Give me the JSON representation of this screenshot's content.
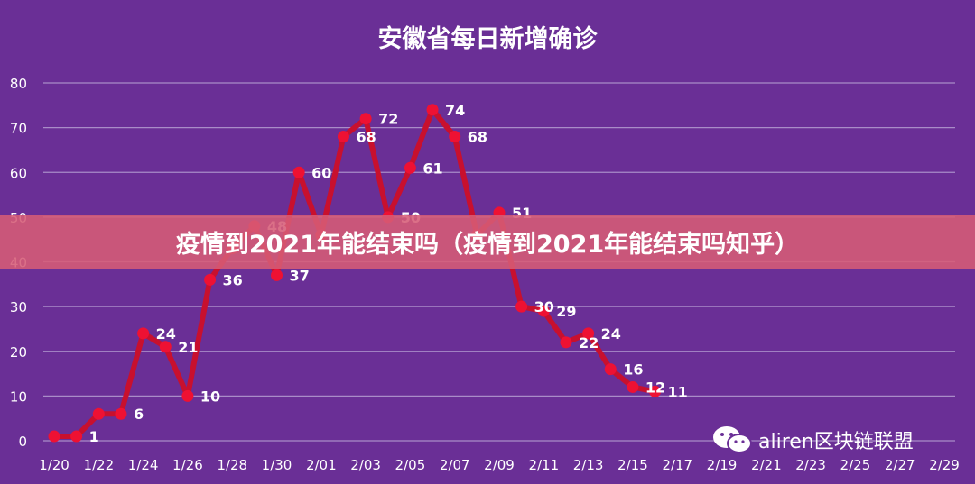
{
  "banner": {
    "title": "疫情到2021年能结束吗（疫情到2021年能结束吗知乎）"
  },
  "watermark": {
    "text": "aliren区块链联盟",
    "icon": "wechat-icon"
  },
  "colors": {
    "background": "#6a2f96",
    "line": "#c8102e",
    "marker": "#ee1133",
    "grid": "#a98cc8",
    "text": "#ffffff"
  },
  "chart_data": {
    "type": "line",
    "title": "安徽省每日新增确诊",
    "xlabel": "",
    "ylabel": "",
    "ylim": [
      0,
      80
    ],
    "yticks": [
      0,
      10,
      20,
      30,
      40,
      50,
      60,
      70,
      80
    ],
    "grid": true,
    "xtick_labels": [
      "1/20",
      "1/22",
      "1/24",
      "1/26",
      "1/28",
      "1/30",
      "2/01",
      "2/03",
      "2/05",
      "2/07",
      "2/09",
      "2/11",
      "2/13",
      "2/15",
      "2/17",
      "2/19",
      "2/21",
      "2/23",
      "2/25",
      "2/27",
      "2/29"
    ],
    "series": [
      {
        "values": [
          1,
          1,
          6,
          6,
          24,
          21,
          10,
          36,
          43,
          48,
          37,
          60,
          46,
          68,
          72,
          50,
          61,
          74,
          68,
          46,
          51,
          30,
          29,
          22,
          24,
          16,
          12,
          11
        ]
      }
    ],
    "data_labels": [
      {
        "index": 1,
        "text": "1"
      },
      {
        "index": 3,
        "text": "6"
      },
      {
        "index": 4,
        "text": "24"
      },
      {
        "index": 5,
        "text": "21"
      },
      {
        "index": 6,
        "text": "10"
      },
      {
        "index": 7,
        "text": "36"
      },
      {
        "index": 9,
        "text": "48"
      },
      {
        "index": 10,
        "text": "37"
      },
      {
        "index": 11,
        "text": "60"
      },
      {
        "index": 13,
        "text": "68"
      },
      {
        "index": 14,
        "text": "72"
      },
      {
        "index": 15,
        "text": "50"
      },
      {
        "index": 16,
        "text": "61"
      },
      {
        "index": 17,
        "text": "74"
      },
      {
        "index": 18,
        "text": "68"
      },
      {
        "index": 20,
        "text": "51"
      },
      {
        "index": 21,
        "text": "30"
      },
      {
        "index": 22,
        "text": "29"
      },
      {
        "index": 23,
        "text": "22"
      },
      {
        "index": 24,
        "text": "24"
      },
      {
        "index": 25,
        "text": "16"
      },
      {
        "index": 26,
        "text": "12"
      },
      {
        "index": 27,
        "text": "11"
      }
    ]
  }
}
